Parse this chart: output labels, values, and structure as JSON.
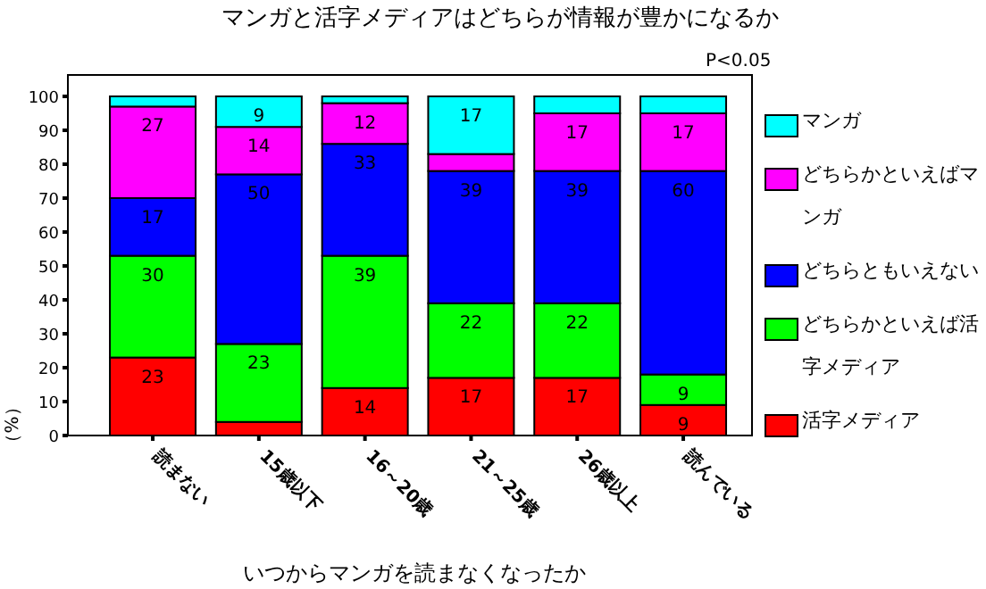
{
  "chart_data": {
    "type": "bar",
    "stacked": true,
    "title": "マンガと活字メディアはどちらが情報が豊かになるか",
    "annotations": [
      "P<0.05"
    ],
    "xlabel": "いつからマンガを読まなくなったか",
    "ylabel": "（%）",
    "categories": [
      "読まない",
      "15歳以下",
      "16～20歳",
      "21～25歳",
      "26歳以上",
      "読んでいる"
    ],
    "series": [
      {
        "name": "活字メディア",
        "color": "#ff0000",
        "values": [
          23,
          4,
          14,
          17,
          17,
          9
        ],
        "value_labels": [
          "23",
          null,
          "14",
          "17",
          "17",
          "9"
        ]
      },
      {
        "name": "どちらかといえば活字メディア",
        "color": "#00ff00",
        "values": [
          30,
          23,
          39,
          22,
          22,
          9
        ],
        "value_labels": [
          "30",
          "23",
          "39",
          "22",
          "22",
          "9"
        ]
      },
      {
        "name": "どちらともいえない",
        "color": "#0000ff",
        "values": [
          17,
          50,
          33,
          39,
          39,
          60
        ],
        "value_labels": [
          "17",
          "50",
          "33",
          "39",
          "39",
          "60"
        ]
      },
      {
        "name": "どちらかといえばマンガ",
        "color": "#ff00ff",
        "values": [
          27,
          14,
          12,
          5,
          17,
          17
        ],
        "value_labels": [
          "27",
          "14",
          "12",
          null,
          "17",
          "17"
        ]
      },
      {
        "name": "マンガ",
        "color": "#00ffff",
        "values": [
          3,
          9,
          2,
          17,
          5,
          5
        ],
        "value_labels": [
          null,
          "9",
          null,
          "17",
          null,
          null
        ]
      }
    ],
    "ylim": [
      0,
      100
    ],
    "yticks": [
      0,
      10,
      20,
      30,
      40,
      50,
      60,
      70,
      80,
      90,
      100
    ],
    "grid": false,
    "legend": "right"
  }
}
